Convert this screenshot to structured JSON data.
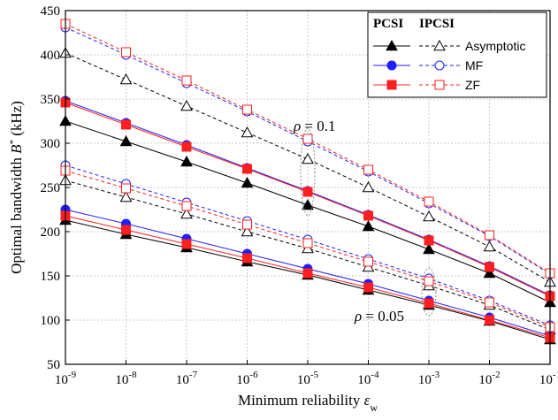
{
  "chart_data": {
    "type": "line",
    "xlabel_main": "Minimum reliability ",
    "xlabel_symbol": "ε",
    "xlabel_sub": "w",
    "ylabel_main": "Optimal bandwidth ",
    "ylabel_symbol": "B",
    "ylabel_sup": "*",
    "ylabel_unit": " (kHz)",
    "x_scale": "log",
    "x": [
      1e-09,
      1e-08,
      1e-07,
      1e-06,
      1e-05,
      0.0001,
      0.001,
      0.01,
      0.1
    ],
    "x_tick_mantissa": [
      "10",
      "10",
      "10",
      "10",
      "10",
      "10",
      "10",
      "10",
      "10"
    ],
    "x_tick_exponent": [
      "-9",
      "-8",
      "-7",
      "-6",
      "-5",
      "-4",
      "-3",
      "-2",
      "-1"
    ],
    "ylim": [
      50,
      450
    ],
    "yticks": [
      "50",
      "100",
      "150",
      "200",
      "250",
      "300",
      "350",
      "400",
      "450"
    ],
    "grid": true,
    "legend_position": "top-right",
    "legend_headers": [
      "PCSI",
      "IPCSI"
    ],
    "legend_entries": [
      "Asymptotic",
      "MF",
      "ZF"
    ],
    "colors": {
      "asymptotic": "#000000",
      "mf": "#1f1fff",
      "zf": "#ff1f1f",
      "grid": "#c8c8c8",
      "annot_ellipse": "#888888"
    },
    "annotations": [
      {
        "text_symbol": "ρ",
        "text_rest": " = 0.1",
        "x": 1e-05,
        "y": 320
      },
      {
        "text_symbol": "ρ",
        "text_rest": " = 0.05",
        "x": 0.001,
        "y": 105
      }
    ],
    "series": [
      {
        "method": "asymptotic",
        "csi": "PCSI",
        "rho": "0.1",
        "values": [
          325,
          302,
          279,
          255,
          230,
          206,
          180,
          153,
          120
        ]
      },
      {
        "method": "asymptotic",
        "csi": "IPCSI",
        "rho": "0.1",
        "values": [
          402,
          372,
          342,
          312,
          282,
          250,
          217,
          183,
          143
        ]
      },
      {
        "method": "mf",
        "csi": "PCSI",
        "rho": "0.1",
        "values": [
          348,
          323,
          298,
          272,
          246,
          219,
          191,
          161,
          128
        ]
      },
      {
        "method": "mf",
        "csi": "IPCSI",
        "rho": "0.1",
        "values": [
          431,
          400,
          368,
          336,
          302,
          268,
          232,
          195,
          152
        ]
      },
      {
        "method": "zf",
        "csi": "PCSI",
        "rho": "0.1",
        "values": [
          346,
          321,
          296,
          271,
          245,
          218,
          190,
          160,
          127
        ]
      },
      {
        "method": "zf",
        "csi": "IPCSI",
        "rho": "0.1",
        "values": [
          435,
          403,
          371,
          338,
          305,
          270,
          234,
          196,
          153
        ]
      },
      {
        "method": "asymptotic",
        "csi": "PCSI",
        "rho": "0.05",
        "values": [
          213,
          197,
          182,
          166,
          151,
          134,
          117,
          99,
          78
        ]
      },
      {
        "method": "asymptotic",
        "csi": "IPCSI",
        "rho": "0.05",
        "values": [
          258,
          239,
          220,
          200,
          181,
          160,
          139,
          117,
          89
        ]
      },
      {
        "method": "mf",
        "csi": "PCSI",
        "rho": "0.05",
        "values": [
          225,
          209,
          192,
          175,
          158,
          141,
          122,
          103,
          82
        ]
      },
      {
        "method": "mf",
        "csi": "IPCSI",
        "rho": "0.05",
        "values": [
          275,
          254,
          233,
          212,
          191,
          169,
          147,
          122,
          94
        ]
      },
      {
        "method": "zf",
        "csi": "PCSI",
        "rho": "0.05",
        "values": [
          218,
          202,
          186,
          170,
          153,
          137,
          119,
          100,
          80
        ]
      },
      {
        "method": "zf",
        "csi": "IPCSI",
        "rho": "0.05",
        "values": [
          269,
          249,
          229,
          208,
          187,
          166,
          144,
          120,
          92
        ]
      }
    ]
  }
}
